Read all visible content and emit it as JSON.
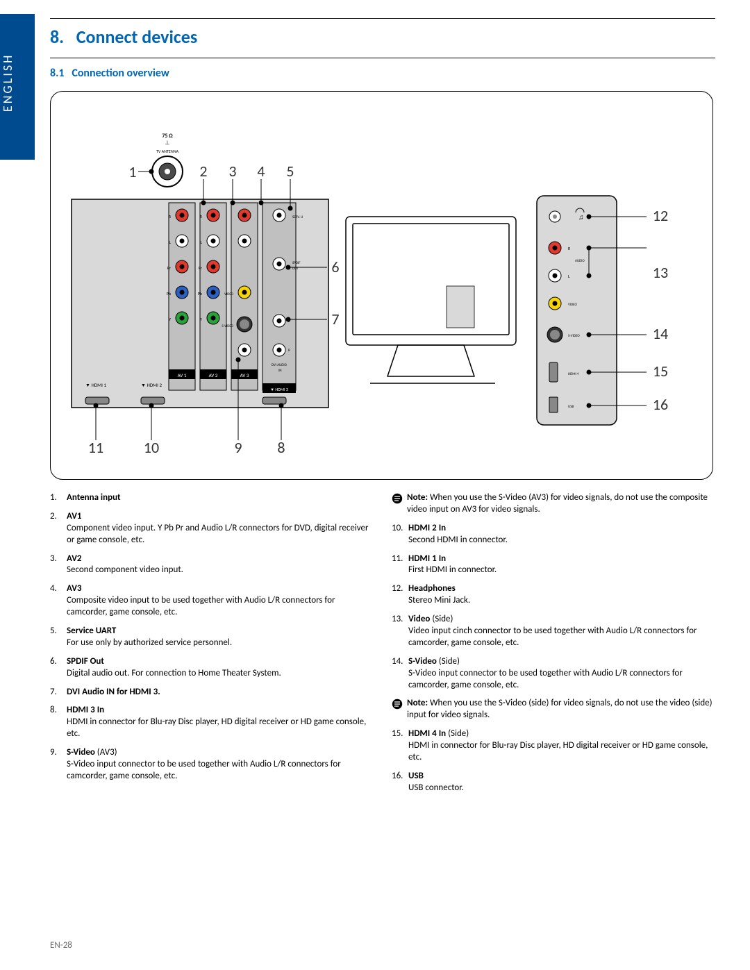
{
  "language_tab": "ENGLISH",
  "chapter": {
    "num": "8.",
    "title": "Connect devices"
  },
  "section": {
    "num": "8.1",
    "title": "Connection overview"
  },
  "page_number": "EN-28",
  "diagram": {
    "callouts_top": [
      "1",
      "2",
      "3",
      "4",
      "5"
    ],
    "callouts_right_main": [
      "6",
      "7"
    ],
    "callouts_bottom": [
      "11",
      "10",
      "9",
      "8"
    ],
    "callouts_side": [
      "12",
      "13",
      "14",
      "15",
      "16"
    ],
    "labels": {
      "ohm": "75 Ω",
      "antenna": "TV ANTENNA",
      "serv": "SERV. U",
      "spdif": "SPDIF OUT",
      "video": "VIDEO",
      "svideo": "S-VIDEO",
      "dvi": "DVI AUDIO IN",
      "av1": "AV 1",
      "av2": "AV 2",
      "av3": "AV 3",
      "hdmi1": "HDMI 1",
      "hdmi2": "HDMI 2",
      "hdmi3": "HDMI 3",
      "hdmi4": "HDMI 4",
      "usb": "USB",
      "audio": "AUDIO",
      "hp": "",
      "R": "R",
      "L": "L",
      "Pr": "Pr",
      "Pb": "Pb",
      "Y": "Y"
    },
    "colors": {
      "red": "#e03a2f",
      "white": "#ffffff",
      "yellow": "#f7d408",
      "green": "#2aa23a",
      "blue": "#2b5fc2",
      "panel": "#d9d9d9",
      "dark": "#000000",
      "gray": "#9e9e9e"
    }
  },
  "items_left": [
    {
      "n": "1.",
      "t": "Antenna input",
      "d": ""
    },
    {
      "n": "2.",
      "t": "AV1",
      "d": "Component video input.  Y Pb Pr and Audio L/R connectors for DVD, digital receiver or game console, etc."
    },
    {
      "n": "3.",
      "t": "AV2",
      "d": "Second component video input."
    },
    {
      "n": "4.",
      "t": "AV3",
      "d": "Composite video input to be used together with Audio L/R connectors for camcorder, game console, etc."
    },
    {
      "n": "5.",
      "t": "Service UART",
      "d": "For use only by authorized service personnel."
    },
    {
      "n": "6.",
      "t": "SPDIF Out",
      "d": "Digital audio out. For connection to Home Theater System."
    },
    {
      "n": "7.",
      "t": "DVI Audio IN for HDMI 3.",
      "d": ""
    },
    {
      "n": "8.",
      "t": "HDMI 3 In",
      "d": "HDMI in connector for Blu-ray Disc player, HD digital receiver or HD game console, etc."
    },
    {
      "n": "9.",
      "t": "S-Video",
      "suffix": " (AV3)",
      "d": "S-Video input connector to be used together with Audio L/R connectors for camcorder, game console, etc."
    }
  ],
  "note_left": "",
  "items_right": [
    {
      "note": true,
      "t": "Note:",
      "d": " When you use the S-Video (AV3) for video signals, do not use the composite video input on AV3 for video signals."
    },
    {
      "n": "10.",
      "t": "HDMI 2 In",
      "d": "Second HDMI in connector."
    },
    {
      "n": "11.",
      "t": "HDMI 1 In",
      "d": "First HDMI in connector."
    },
    {
      "n": "12.",
      "t": "Headphones",
      "d": "Stereo Mini Jack."
    },
    {
      "n": "13.",
      "t": "Video",
      "suffix": " (Side)",
      "d": "Video input cinch connector to be used together with Audio L/R connectors for camcorder, game console, etc."
    },
    {
      "n": "14.",
      "t": "S-Video",
      "suffix": " (Side)",
      "d": "S-Video input connector to be used together with Audio L/R connectors for camcorder, game console, etc."
    },
    {
      "note": true,
      "t": "Note:",
      "d": " When you use the S-Video (side) for video signals, do not use the video (side) input for video signals."
    },
    {
      "n": "15.",
      "t": "HDMI 4 In",
      "suffix": " (Side)",
      "d": "HDMI in connector for Blu-ray Disc player, HD digital receiver or HD game console, etc."
    },
    {
      "n": "16.",
      "t": "USB",
      "d": "USB connector."
    }
  ]
}
